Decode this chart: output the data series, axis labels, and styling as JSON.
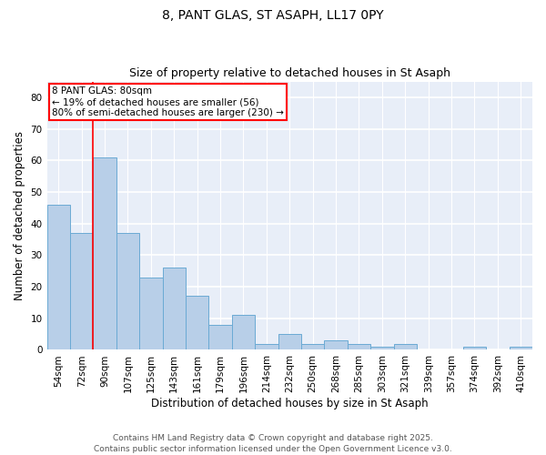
{
  "title1": "8, PANT GLAS, ST ASAPH, LL17 0PY",
  "title2": "Size of property relative to detached houses in St Asaph",
  "xlabel": "Distribution of detached houses by size in St Asaph",
  "ylabel": "Number of detached properties",
  "categories": [
    "54sqm",
    "72sqm",
    "90sqm",
    "107sqm",
    "125sqm",
    "143sqm",
    "161sqm",
    "179sqm",
    "196sqm",
    "214sqm",
    "232sqm",
    "250sqm",
    "268sqm",
    "285sqm",
    "303sqm",
    "321sqm",
    "339sqm",
    "357sqm",
    "374sqm",
    "392sqm",
    "410sqm"
  ],
  "values": [
    46,
    37,
    61,
    37,
    23,
    26,
    17,
    8,
    11,
    2,
    5,
    2,
    3,
    2,
    1,
    2,
    0,
    0,
    1,
    0,
    1
  ],
  "bar_color": "#b8cfe8",
  "bar_edge_color": "#6aaad4",
  "bar_edge_width": 0.7,
  "red_line_x": 1.5,
  "annotation_text": "8 PANT GLAS: 80sqm\n← 19% of detached houses are smaller (56)\n80% of semi-detached houses are larger (230) →",
  "annotation_box_color": "white",
  "annotation_box_edge_color": "red",
  "ylim": [
    0,
    85
  ],
  "yticks": [
    0,
    10,
    20,
    30,
    40,
    50,
    60,
    70,
    80
  ],
  "background_color": "#e8eef8",
  "grid_color": "white",
  "footer_text": "Contains HM Land Registry data © Crown copyright and database right 2025.\nContains public sector information licensed under the Open Government Licence v3.0.",
  "title_fontsize": 10,
  "subtitle_fontsize": 9,
  "axis_label_fontsize": 8.5,
  "tick_fontsize": 7.5,
  "annotation_fontsize": 7.5,
  "footer_fontsize": 6.5
}
